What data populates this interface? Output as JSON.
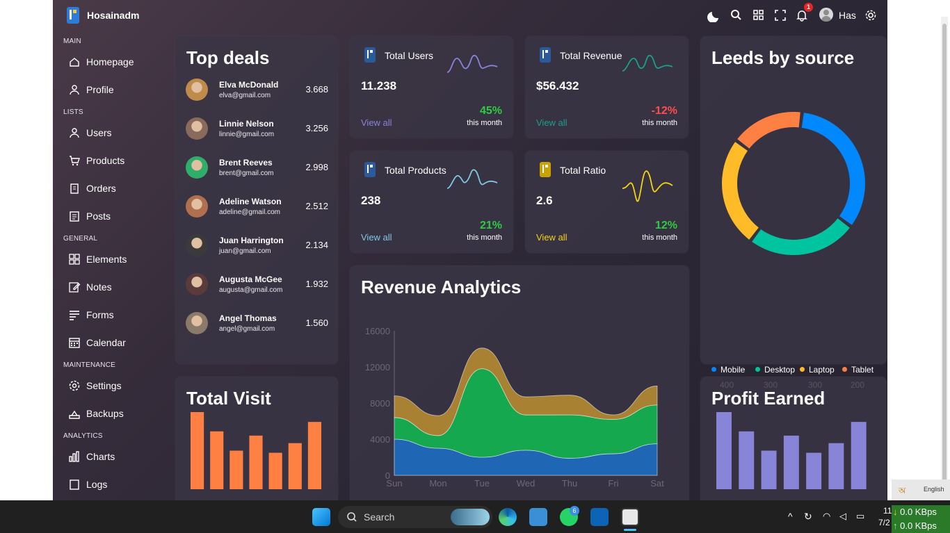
{
  "app": {
    "brand": "Hosainadm",
    "user_name": "Has",
    "notification_count": "1"
  },
  "sidebar": {
    "sections": [
      {
        "title": "MAIN",
        "items": [
          {
            "label": "Homepage",
            "icon": "home-icon"
          },
          {
            "label": "Profile",
            "icon": "user-icon"
          }
        ]
      },
      {
        "title": "LISTS",
        "items": [
          {
            "label": "Users",
            "icon": "user-icon"
          },
          {
            "label": "Products",
            "icon": "cart-icon"
          },
          {
            "label": "Orders",
            "icon": "clipboard-icon"
          },
          {
            "label": "Posts",
            "icon": "document-icon"
          }
        ]
      },
      {
        "title": "GENERAL",
        "items": [
          {
            "label": "Elements",
            "icon": "grid-icon"
          },
          {
            "label": "Notes",
            "icon": "edit-icon"
          },
          {
            "label": "Forms",
            "icon": "form-icon"
          },
          {
            "label": "Calendar",
            "icon": "calendar-icon"
          }
        ]
      },
      {
        "title": "MAINTENANCE",
        "items": [
          {
            "label": "Settings",
            "icon": "gear-icon"
          },
          {
            "label": "Backups",
            "icon": "backup-icon"
          }
        ]
      },
      {
        "title": "ANALYTICS",
        "items": [
          {
            "label": "Charts",
            "icon": "bar-chart-icon"
          },
          {
            "label": "Logs",
            "icon": "logs-icon"
          }
        ]
      }
    ]
  },
  "top_deals": {
    "title": "Top deals",
    "deals": [
      {
        "name": "Elva McDonald",
        "email": "elva@gmail.com",
        "amount": "3.668"
      },
      {
        "name": "Linnie Nelson",
        "email": "linnie@gmail.com",
        "amount": "3.256"
      },
      {
        "name": "Brent Reeves",
        "email": "brent@gmail.com",
        "amount": "2.998"
      },
      {
        "name": "Adeline Watson",
        "email": "adeline@gmail.com",
        "amount": "2.512"
      },
      {
        "name": "Juan Harrington",
        "email": "juan@gmail.com",
        "amount": "2.134"
      },
      {
        "name": "Augusta McGee",
        "email": "augusta@gmail.com",
        "amount": "1.932"
      },
      {
        "name": "Angel Thomas",
        "email": "angel@gmail.com",
        "amount": "1.560"
      }
    ]
  },
  "stats": [
    {
      "title": "Total Users",
      "value": "11.238",
      "link": "View all",
      "percent": "45%",
      "period": "this month",
      "color": "#8884d8",
      "pct_color": "#2ecc40"
    },
    {
      "title": "Total Revenue",
      "value": "$56.432",
      "link": "View all",
      "percent": "-12%",
      "period": "this month",
      "color": "#1aa18a",
      "pct_color": "#ff4d4d"
    },
    {
      "title": "Total Products",
      "value": "238",
      "link": "View all",
      "percent": "21%",
      "period": "this month",
      "color": "#7ec8e3",
      "pct_color": "#2ecc40"
    },
    {
      "title": "Total Ratio",
      "value": "2.6",
      "link": "View all",
      "percent": "12%",
      "period": "this month",
      "color": "#f5d312",
      "pct_color": "#2ecc40"
    }
  ],
  "leads": {
    "title": "Leeds by source",
    "chart_data": {
      "type": "pie",
      "categories": [
        "Mobile",
        "Desktop",
        "Laptop",
        "Tablet"
      ],
      "values": [
        400,
        300,
        300,
        200
      ],
      "colors": [
        "#0088fe",
        "#00c49f",
        "#ffbb28",
        "#ff8042"
      ]
    }
  },
  "revenue": {
    "title": "Revenue Analytics",
    "chart_data": {
      "type": "area",
      "categories": [
        "Sun",
        "Mon",
        "Tue",
        "Wed",
        "Thu",
        "Fri",
        "Sat"
      ],
      "ylim": [
        0,
        16000
      ],
      "yticks": [
        "0",
        "4000",
        "8000",
        "12000",
        "16000"
      ],
      "series": [
        {
          "values": [
            4000,
            3000,
            2000,
            2780,
            1890,
            2390,
            3490
          ],
          "color": "#1f66b5"
        },
        {
          "values": [
            2400,
            1398,
            9800,
            3908,
            4800,
            3800,
            4300
          ],
          "color": "#16a84f"
        },
        {
          "values": [
            2400,
            2210,
            2290,
            2000,
            2181,
            500,
            2100
          ],
          "color": "#a88232"
        }
      ]
    }
  },
  "total_visit": {
    "title": "Total Visit",
    "chart_data": {
      "type": "bar",
      "values": [
        4000,
        3000,
        2000,
        2780,
        1890,
        2390,
        3490
      ],
      "color": "#ff8042"
    }
  },
  "profit": {
    "title": "Profit Earned",
    "chart_data": {
      "type": "bar",
      "values": [
        4000,
        3000,
        2000,
        2780,
        1890,
        2390,
        3490
      ],
      "color": "#8884d8"
    }
  },
  "taskbar": {
    "search_label": "Search",
    "whatsapp_badge": "6",
    "clock_time": "11",
    "clock_date": "7/2",
    "net_down": "0.0 KBps",
    "net_up": "0.0 KBps",
    "language": "English"
  }
}
